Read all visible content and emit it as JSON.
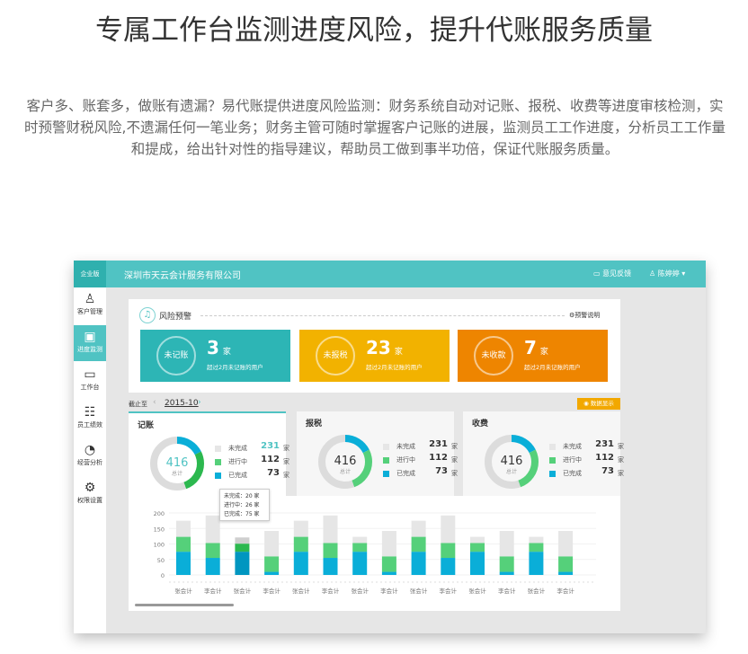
{
  "page": {
    "title": "专属工作台监测进度风险，提升代账服务质量",
    "description": "客户多、账套多，做账有遗漏？易代账提供进度风险监测：财务系统自动对记账、报税、收费等进度审核检测，实时预警财税风险,不遗漏任何一笔业务；财务主管可随时掌握客户记账的进展，监测员工工作进度，分析员工工作量和提成，给出针对性的指导建议，帮助员工做到事半功倍，保证代账服务质量。"
  },
  "app": {
    "logo": "企业版",
    "company": "深圳市天云会计服务有限公司",
    "feedback": "意见反馈",
    "user": "陈婷婷",
    "accent": "#50c3c3",
    "sidebar": [
      {
        "label": "客户管理",
        "icon": "user-icon"
      },
      {
        "label": "进度监测",
        "icon": "chart-icon",
        "active": true
      },
      {
        "label": "工作台",
        "icon": "monitor-icon"
      },
      {
        "label": "员工绩效",
        "icon": "sliders-icon"
      },
      {
        "label": "经营分析",
        "icon": "pie-icon"
      },
      {
        "label": "权限设置",
        "icon": "gear-icon"
      }
    ],
    "risk": {
      "title": "风险预警",
      "help": "预警说明",
      "cards": [
        {
          "label": "未记账",
          "count": "3",
          "unit": "家",
          "desc": "超过2月未记账的用户",
          "color": "#2db5b5"
        },
        {
          "label": "未报税",
          "count": "23",
          "unit": "家",
          "desc": "超过2月未记账的用户",
          "color": "#f2b200"
        },
        {
          "label": "未收款",
          "count": "7",
          "unit": "家",
          "desc": "超过2月未记账的用户",
          "color": "#ee8500"
        }
      ]
    },
    "date": {
      "label": "截止至",
      "value": "2015-10"
    },
    "toggle_button": "数据显示",
    "stats": [
      {
        "title": "记账",
        "total": "416",
        "total_label": "总计",
        "items": [
          {
            "label": "未完成",
            "value": "231",
            "unit": "家"
          },
          {
            "label": "进行中",
            "value": "112",
            "unit": "家"
          },
          {
            "label": "已完成",
            "value": "73",
            "unit": "家"
          }
        ]
      },
      {
        "title": "报税",
        "total": "416",
        "total_label": "总计",
        "items": [
          {
            "label": "未完成",
            "value": "231",
            "unit": "家"
          },
          {
            "label": "进行中",
            "value": "112",
            "unit": "家"
          },
          {
            "label": "已完成",
            "value": "73",
            "unit": "家"
          }
        ]
      },
      {
        "title": "收费",
        "total": "416",
        "total_label": "总计",
        "items": [
          {
            "label": "未完成",
            "value": "231",
            "unit": "家"
          },
          {
            "label": "进行中",
            "value": "112",
            "unit": "家"
          },
          {
            "label": "已完成",
            "value": "73",
            "unit": "家"
          }
        ]
      }
    ],
    "tooltip": [
      "未完成：20 家",
      "进行中：26 家",
      "已完成：75 家"
    ]
  },
  "chart_data": {
    "type": "bar",
    "stacked": true,
    "ylim": [
      0,
      200
    ],
    "yticks": [
      "0",
      "50",
      "100",
      "150",
      "200"
    ],
    "categories": [
      "张会计",
      "李会计",
      "张会计",
      "李会计",
      "张会计",
      "李会计",
      "张会计",
      "李会计",
      "张会计",
      "李会计",
      "张会计",
      "李会计",
      "张会计",
      "李会计"
    ],
    "series": [
      {
        "name": "已完成",
        "color": "#0aaed8",
        "values": [
          75,
          55,
          75,
          10,
          75,
          55,
          75,
          10,
          75,
          55,
          75,
          10,
          75,
          10
        ]
      },
      {
        "name": "进行中",
        "color": "#55d07a",
        "values": [
          48,
          48,
          26,
          50,
          48,
          48,
          28,
          50,
          48,
          48,
          28,
          50,
          28,
          50
        ]
      },
      {
        "name": "未完成",
        "color": "#e6e6e6",
        "values": [
          52,
          89,
          20,
          82,
          52,
          89,
          20,
          82,
          52,
          89,
          20,
          82,
          20,
          82
        ]
      }
    ]
  }
}
